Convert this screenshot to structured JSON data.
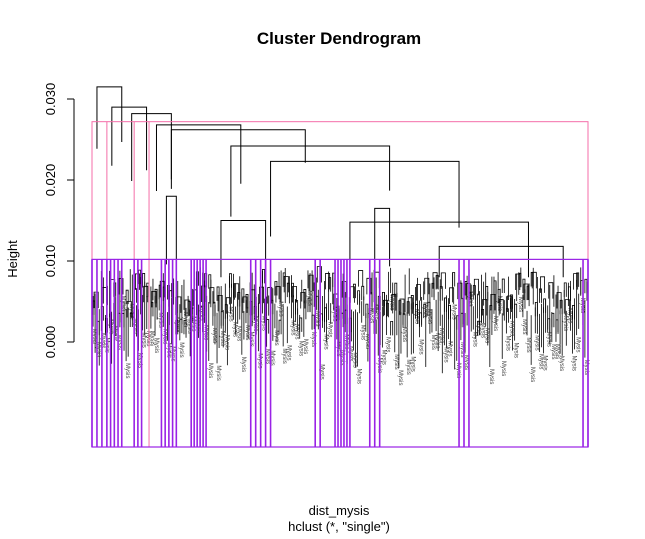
{
  "chart_data": {
    "type": "dendrogram",
    "title": "Cluster Dendrogram",
    "ylabel": "Height",
    "xlabel": "dist_mysis",
    "subtitle": "hclust (*, \"single\")",
    "y_ticks": [
      0.0,
      0.01,
      0.02,
      0.03
    ],
    "y_tick_labels": [
      "0.000",
      "0.010",
      "0.020",
      "0.030"
    ],
    "ylim": [
      -0.0125,
      0.032
    ],
    "leaf_label_text": "Mysis",
    "cut_boxes": [
      {
        "height": 0.0272,
        "color": "#f46ea8",
        "x_range": [
          0.0,
          1.0
        ]
      },
      {
        "height": 0.0102,
        "color": "#9a22e6",
        "x_range": [
          0.0,
          1.0
        ]
      }
    ],
    "top_merges": [
      {
        "height": 0.0315,
        "left": 0.01,
        "right": 0.06
      },
      {
        "height": 0.029,
        "left": 0.04,
        "right": 0.11
      },
      {
        "height": 0.0282,
        "left": 0.08,
        "right": 0.16
      },
      {
        "height": 0.0268,
        "left": 0.13,
        "right": 0.3
      },
      {
        "height": 0.0262,
        "left": 0.16,
        "right": 0.43
      },
      {
        "height": 0.0242,
        "left": 0.28,
        "right": 0.6
      },
      {
        "height": 0.0223,
        "left": 0.36,
        "right": 0.74
      },
      {
        "height": 0.018,
        "left": 0.15,
        "right": 0.17
      },
      {
        "height": 0.0165,
        "left": 0.57,
        "right": 0.6
      },
      {
        "height": 0.015,
        "left": 0.26,
        "right": 0.35
      },
      {
        "height": 0.0148,
        "left": 0.52,
        "right": 0.88
      },
      {
        "height": 0.0118,
        "left": 0.7,
        "right": 0.95
      }
    ]
  },
  "colors": {
    "background": "#ffffff",
    "tree": "#000000",
    "cut_high": "#f46ea8",
    "cut_low": "#9a22e6",
    "leaf_label": "#444444"
  }
}
